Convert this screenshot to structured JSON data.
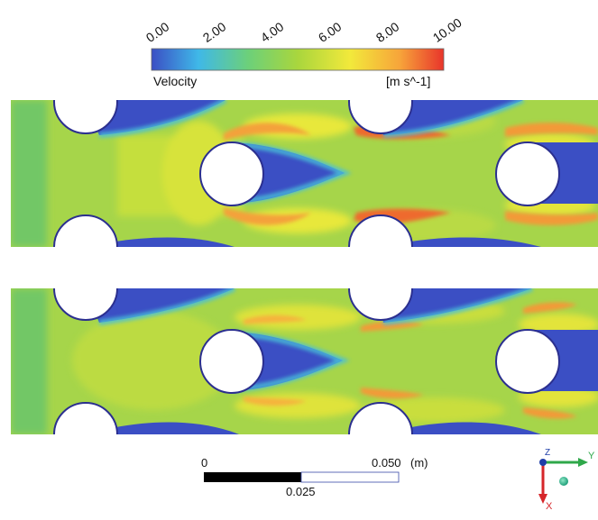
{
  "legend": {
    "title": "Velocity",
    "unit": "[m s^-1]",
    "ticks": [
      "0.00",
      "2.00",
      "4.00",
      "6.00",
      "8.00",
      "10.00"
    ],
    "range": [
      0,
      10
    ],
    "colors": [
      "#3b4fc4",
      "#3fb8e8",
      "#6cd07a",
      "#a9d63d",
      "#f2e93b",
      "#f7a43a",
      "#e8342b"
    ]
  },
  "scale_bar": {
    "start_label": "0",
    "end_label": "0.050",
    "unit_label": "(m)",
    "mid_label": "0.025"
  },
  "axes": {
    "z_label": "Z",
    "y_label": "Y",
    "x_label": "X",
    "colors": {
      "z": "#1f3ea8",
      "y": "#2fa84a",
      "x": "#d6262a"
    }
  },
  "panels": [
    {
      "name": "upper-contour"
    },
    {
      "name": "lower-contour"
    }
  ]
}
